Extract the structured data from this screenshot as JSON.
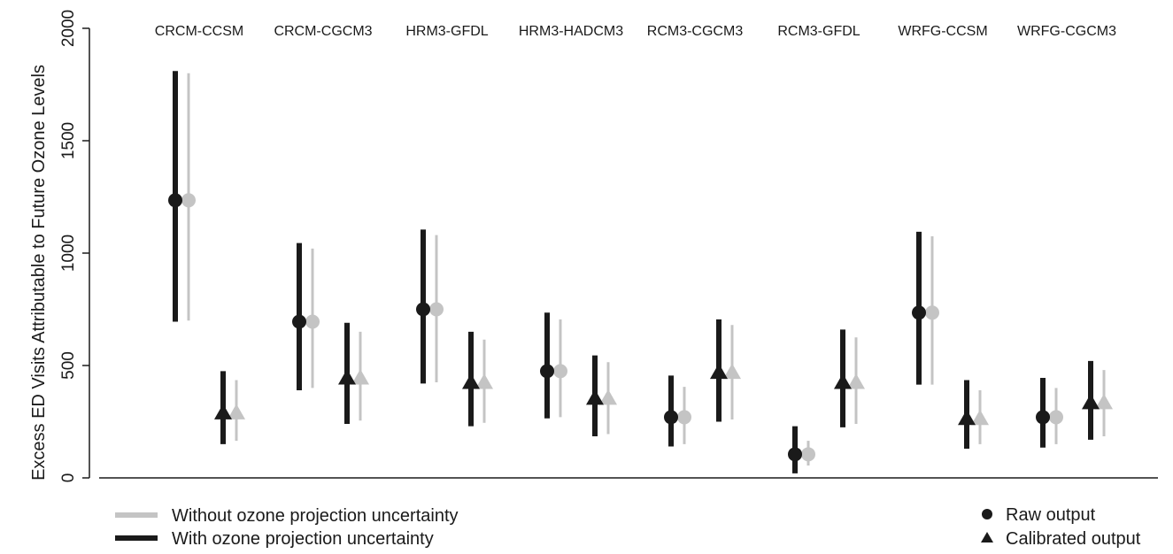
{
  "chart_data": {
    "type": "interval",
    "ylabel": "Excess ED Visits Attributable to Future Ozone Levels",
    "ylim": [
      0,
      2000
    ],
    "yticks": [
      0,
      500,
      1000,
      1500,
      2000
    ],
    "categories": [
      "CRCM-CCSM",
      "CRCM-CGCM3",
      "HRM3-GFDL",
      "HRM3-HADCM3",
      "RCM3-CGCM3",
      "RCM3-GFDL",
      "WRFG-CCSM",
      "WRFG-CGCM3"
    ],
    "series": [
      {
        "name": "With ozone projection uncertainty",
        "color": "#1a1a1a",
        "raw": [
          {
            "point": 1235,
            "low": 695,
            "high": 1810
          },
          {
            "point": 695,
            "low": 390,
            "high": 1045
          },
          {
            "point": 750,
            "low": 420,
            "high": 1105
          },
          {
            "point": 475,
            "low": 265,
            "high": 735
          },
          {
            "point": 270,
            "low": 140,
            "high": 455
          },
          {
            "point": 105,
            "low": 20,
            "high": 230
          },
          {
            "point": 735,
            "low": 415,
            "high": 1095
          },
          {
            "point": 270,
            "low": 135,
            "high": 445
          }
        ],
        "calibrated": [
          {
            "point": 290,
            "low": 150,
            "high": 475
          },
          {
            "point": 445,
            "low": 240,
            "high": 690
          },
          {
            "point": 425,
            "low": 230,
            "high": 650
          },
          {
            "point": 355,
            "low": 185,
            "high": 545
          },
          {
            "point": 470,
            "low": 250,
            "high": 705
          },
          {
            "point": 425,
            "low": 225,
            "high": 660
          },
          {
            "point": 265,
            "low": 130,
            "high": 435
          },
          {
            "point": 335,
            "low": 170,
            "high": 520
          }
        ]
      },
      {
        "name": "Without ozone projection uncertainty",
        "color": "#c4c4c4",
        "raw": [
          {
            "point": 1235,
            "low": 700,
            "high": 1800
          },
          {
            "point": 695,
            "low": 400,
            "high": 1020
          },
          {
            "point": 750,
            "low": 425,
            "high": 1080
          },
          {
            "point": 475,
            "low": 270,
            "high": 705
          },
          {
            "point": 270,
            "low": 150,
            "high": 405
          },
          {
            "point": 105,
            "low": 55,
            "high": 165
          },
          {
            "point": 735,
            "low": 415,
            "high": 1075
          },
          {
            "point": 270,
            "low": 150,
            "high": 400
          }
        ],
        "calibrated": [
          {
            "point": 290,
            "low": 165,
            "high": 435
          },
          {
            "point": 445,
            "low": 255,
            "high": 650
          },
          {
            "point": 425,
            "low": 245,
            "high": 615
          },
          {
            "point": 355,
            "low": 195,
            "high": 515
          },
          {
            "point": 470,
            "low": 260,
            "high": 680
          },
          {
            "point": 425,
            "low": 240,
            "high": 625
          },
          {
            "point": 265,
            "low": 150,
            "high": 390
          },
          {
            "point": 335,
            "low": 185,
            "high": 480
          }
        ]
      }
    ],
    "legend": {
      "lines": [
        {
          "label": "Without ozone projection uncertainty",
          "color": "#c4c4c4"
        },
        {
          "label": "With ozone projection uncertainty",
          "color": "#1a1a1a"
        }
      ],
      "markers": [
        {
          "label": "Raw output",
          "shape": "circle"
        },
        {
          "label": "Calibrated output",
          "shape": "triangle"
        }
      ]
    }
  }
}
